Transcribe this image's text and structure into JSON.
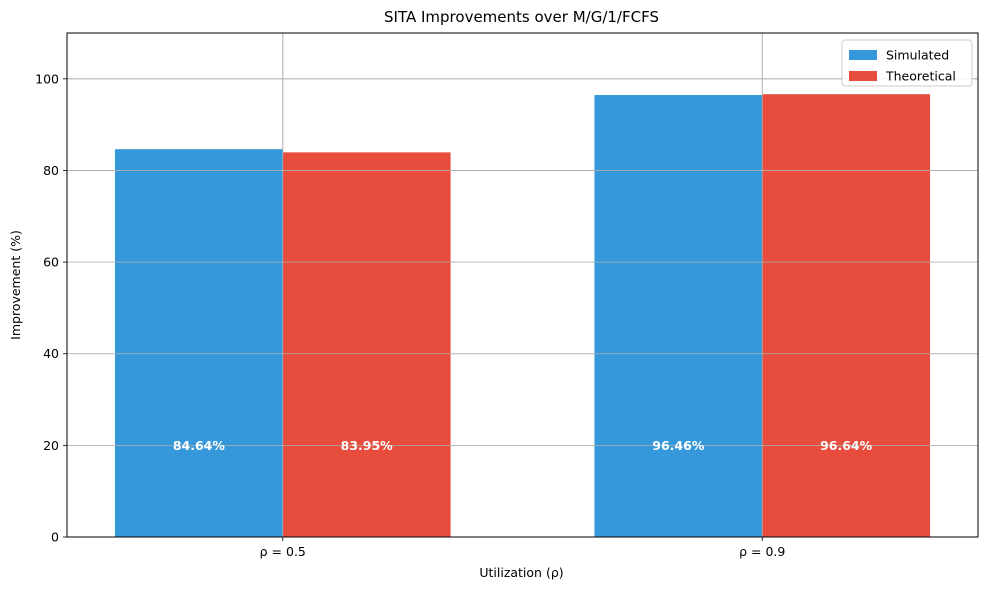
{
  "chart_data": {
    "type": "bar",
    "title": "SITA Improvements over M/G/1/FCFS",
    "xlabel": "Utilization (ρ)",
    "ylabel": "Improvement (%)",
    "categories": [
      "ρ = 0.5",
      "ρ = 0.9"
    ],
    "series": [
      {
        "name": "Simulated",
        "values": [
          84.64,
          96.46
        ],
        "labels": [
          "84.64%",
          "96.46%"
        ],
        "color": "#3498db"
      },
      {
        "name": "Theoretical",
        "values": [
          83.95,
          96.64
        ],
        "labels": [
          "83.95%",
          "96.64%"
        ],
        "color": "#e74c3c"
      }
    ],
    "ylim": [
      0,
      110
    ],
    "yticks": [
      0,
      20,
      40,
      60,
      80,
      100
    ],
    "grid": true,
    "legend_position": "top-right",
    "bar_label_value": 20
  }
}
